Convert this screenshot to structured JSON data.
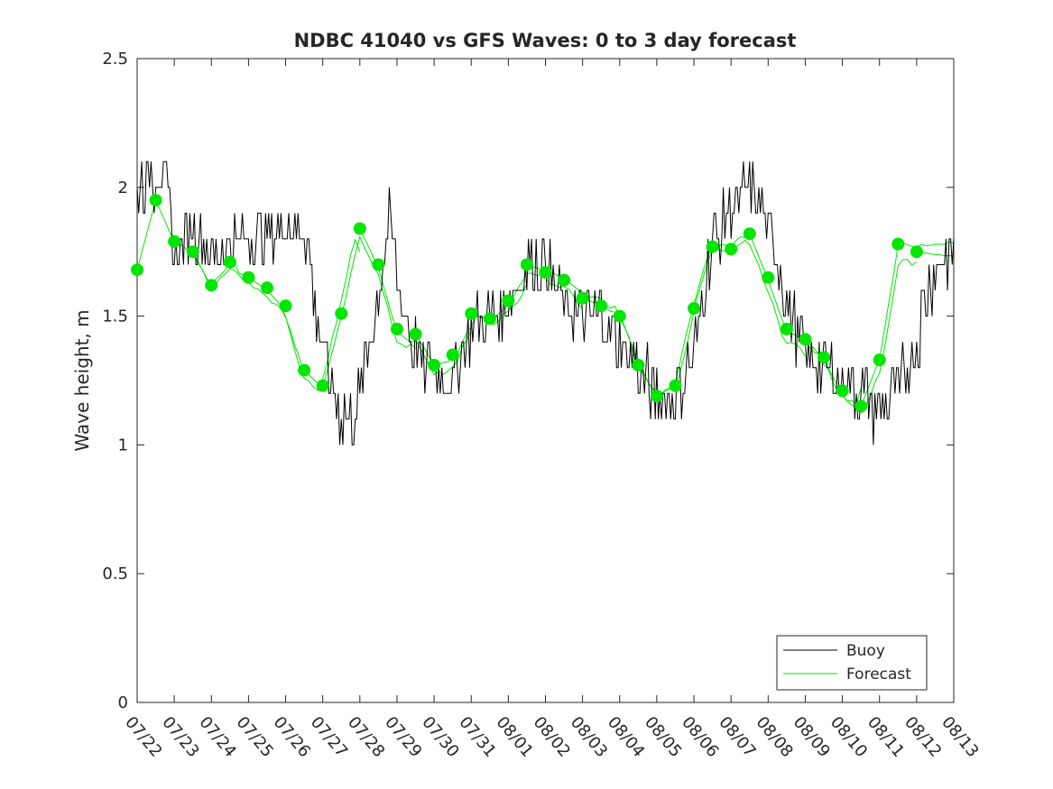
{
  "chart_data": {
    "type": "line",
    "title": "NDBC 41040 vs GFS Waves: 0 to 3 day forecast",
    "xlabel": "",
    "ylabel": "Wave height, m",
    "ylim": [
      0,
      2.5
    ],
    "yticks": [
      "0",
      "0.5",
      "1",
      "1.5",
      "2",
      "2.5"
    ],
    "xlim": [
      "07/22",
      "08/13"
    ],
    "xticks": [
      "07/22",
      "07/23",
      "07/24",
      "07/25",
      "07/26",
      "07/27",
      "07/28",
      "07/29",
      "07/30",
      "07/31",
      "08/01",
      "08/02",
      "08/03",
      "08/04",
      "08/05",
      "08/06",
      "08/07",
      "08/08",
      "08/09",
      "08/10",
      "08/11",
      "08/12",
      "08/13"
    ],
    "legend": {
      "position": "bottom-right",
      "entries": [
        "Buoy",
        "Forecast"
      ]
    },
    "grid": false,
    "colors": {
      "buoy": "#000000",
      "forecast": "#00e600",
      "axes": "#262626"
    },
    "buoy": {
      "name": "Buoy",
      "x_days_from_07_22": [
        0.0,
        0.5,
        0.8,
        1.0,
        1.5,
        2.0,
        3.0,
        4.0,
        4.5,
        4.8,
        5.2,
        5.5,
        5.8,
        6.0,
        6.4,
        6.8,
        7.0,
        7.4,
        7.8,
        8.0,
        8.5,
        9.0,
        9.5,
        10.0,
        10.5,
        11.0,
        11.5,
        12.0,
        12.5,
        13.0,
        13.5,
        14.0,
        14.5,
        15.0,
        15.5,
        16.0,
        16.5,
        17.0,
        17.3,
        17.6,
        18.0,
        18.5,
        19.0,
        19.5,
        20.0,
        20.5,
        21.0,
        21.3,
        21.6,
        22.0
      ],
      "values": [
        2.0,
        2.05,
        2.0,
        1.75,
        1.85,
        1.75,
        1.8,
        1.85,
        1.85,
        1.55,
        1.25,
        1.12,
        1.1,
        1.2,
        1.5,
        1.85,
        1.65,
        1.4,
        1.3,
        1.3,
        1.25,
        1.45,
        1.5,
        1.55,
        1.7,
        1.7,
        1.55,
        1.5,
        1.5,
        1.4,
        1.3,
        1.2,
        1.2,
        1.35,
        1.8,
        1.9,
        2.0,
        1.85,
        1.7,
        1.5,
        1.35,
        1.3,
        1.25,
        1.2,
        1.12,
        1.2,
        1.4,
        1.6,
        1.7,
        1.75
      ]
    },
    "forecast_points": {
      "name": "Forecast",
      "x_days_from_07_22": [
        0.0,
        0.5,
        1.0,
        1.5,
        2.0,
        2.5,
        3.0,
        3.5,
        4.0,
        4.5,
        5.0,
        5.5,
        6.0,
        6.5,
        7.0,
        7.5,
        8.0,
        8.5,
        9.0,
        9.5,
        10.0,
        10.5,
        11.0,
        11.5,
        12.0,
        12.5,
        13.0,
        13.5,
        14.0,
        14.5,
        15.0,
        15.5,
        16.0,
        16.5,
        17.0,
        17.5,
        18.0,
        18.5,
        19.0,
        19.5,
        20.0,
        20.5,
        21.0
      ],
      "values": [
        1.68,
        1.95,
        1.79,
        1.75,
        1.62,
        1.71,
        1.65,
        1.61,
        1.54,
        1.29,
        1.23,
        1.51,
        1.84,
        1.7,
        1.45,
        1.43,
        1.31,
        1.35,
        1.51,
        1.49,
        1.56,
        1.7,
        1.67,
        1.64,
        1.57,
        1.54,
        1.5,
        1.31,
        1.19,
        1.23,
        1.53,
        1.77,
        1.76,
        1.82,
        1.65,
        1.45,
        1.41,
        1.34,
        1.21,
        1.15,
        1.33,
        1.78,
        1.75
      ]
    }
  }
}
